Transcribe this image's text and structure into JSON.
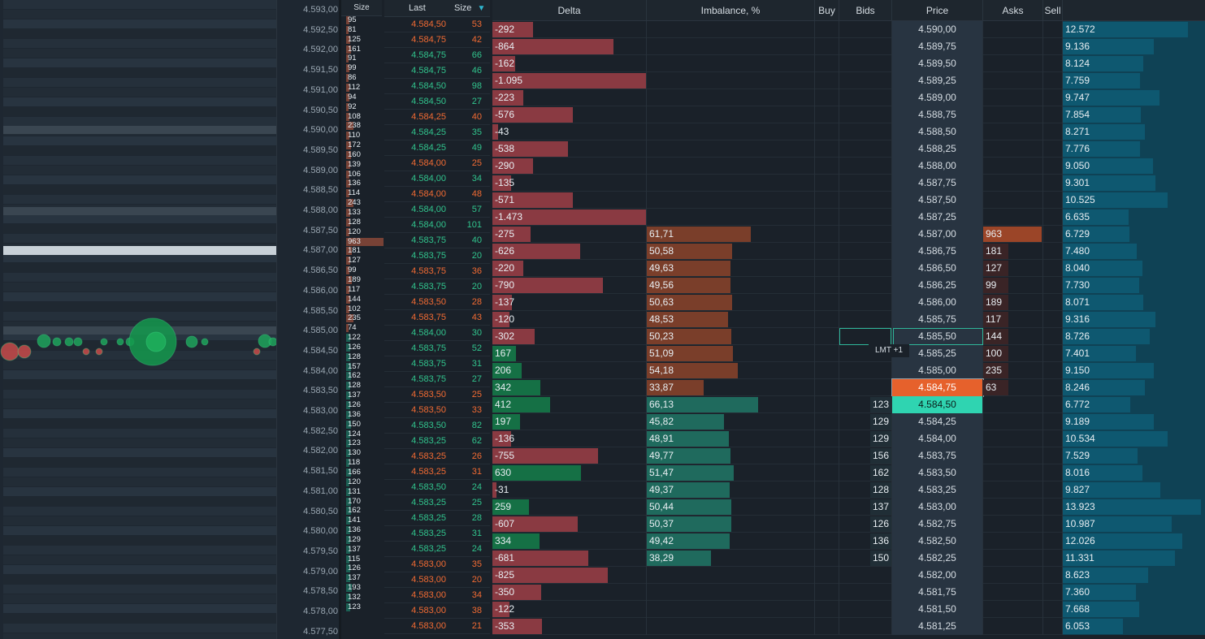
{
  "headers": {
    "vol_size": "Size",
    "last": "Last",
    "size": "Size",
    "delta": "Delta",
    "imbalance": "Imbalance, %",
    "buy": "Buy",
    "bids": "Bids",
    "price": "Price",
    "asks": "Asks",
    "sell": "Sell"
  },
  "colors": {
    "buy": "#31c48d",
    "sell": "#f26b33",
    "ask_highlight": "#e6612c",
    "bid_highlight": "#2fd4b1"
  },
  "y_axis_labels": [
    "4.593,00",
    "4.592,50",
    "4.592,00",
    "4.591,50",
    "4.591,00",
    "4.590,50",
    "4.590,00",
    "4.589,50",
    "4.589,00",
    "4.588,50",
    "4.588,00",
    "4.587,50",
    "4.587,00",
    "4.586,50",
    "4.586,00",
    "4.585,50",
    "4.585,00",
    "4.584,50",
    "4.584,00",
    "4.583,50",
    "4.583,00",
    "4.582,50",
    "4.582,00",
    "4.581,50",
    "4.581,00",
    "4.580,50",
    "4.580,00",
    "4.579,50",
    "4.579,00",
    "4.578,50",
    "4.578,00",
    "4.577,50"
  ],
  "volume_profile": [
    {
      "v": "95",
      "side": "r",
      "w": 4
    },
    {
      "v": "81",
      "side": "r",
      "w": 3
    },
    {
      "v": "125",
      "side": "r",
      "w": 5
    },
    {
      "v": "161",
      "side": "r",
      "w": 6
    },
    {
      "v": "91",
      "side": "r",
      "w": 3
    },
    {
      "v": "99",
      "side": "r",
      "w": 4
    },
    {
      "v": "86",
      "side": "r",
      "w": 3
    },
    {
      "v": "112",
      "side": "r",
      "w": 4
    },
    {
      "v": "94",
      "side": "r",
      "w": 4
    },
    {
      "v": "92",
      "side": "r",
      "w": 3
    },
    {
      "v": "108",
      "side": "r",
      "w": 4
    },
    {
      "v": "238",
      "side": "r",
      "w": 9
    },
    {
      "v": "110",
      "side": "r",
      "w": 4
    },
    {
      "v": "172",
      "side": "r",
      "w": 6
    },
    {
      "v": "160",
      "side": "r",
      "w": 6
    },
    {
      "v": "139",
      "side": "r",
      "w": 5
    },
    {
      "v": "106",
      "side": "r",
      "w": 4
    },
    {
      "v": "136",
      "side": "r",
      "w": 5
    },
    {
      "v": "114",
      "side": "r",
      "w": 4
    },
    {
      "v": "243",
      "side": "r",
      "w": 9
    },
    {
      "v": "133",
      "side": "r",
      "w": 5
    },
    {
      "v": "128",
      "side": "r",
      "w": 5
    },
    {
      "v": "120",
      "side": "r",
      "w": 4
    },
    {
      "v": "963",
      "side": "r",
      "w": 46
    },
    {
      "v": "181",
      "side": "r",
      "w": 7
    },
    {
      "v": "127",
      "side": "r",
      "w": 5
    },
    {
      "v": "99",
      "side": "r",
      "w": 4
    },
    {
      "v": "189",
      "side": "r",
      "w": 7
    },
    {
      "v": "117",
      "side": "r",
      "w": 4
    },
    {
      "v": "144",
      "side": "r",
      "w": 5
    },
    {
      "v": "102",
      "side": "r",
      "w": 4
    },
    {
      "v": "235",
      "side": "r",
      "w": 9
    },
    {
      "v": "74",
      "side": "r",
      "w": 3
    },
    {
      "v": "122",
      "side": "g",
      "w": 5
    },
    {
      "v": "126",
      "side": "g",
      "w": 5
    },
    {
      "v": "128",
      "side": "g",
      "w": 5
    },
    {
      "v": "157",
      "side": "g",
      "w": 6
    },
    {
      "v": "162",
      "side": "g",
      "w": 6
    },
    {
      "v": "128",
      "side": "g",
      "w": 5
    },
    {
      "v": "137",
      "side": "g",
      "w": 5
    },
    {
      "v": "126",
      "side": "g",
      "w": 5
    },
    {
      "v": "136",
      "side": "g",
      "w": 5
    },
    {
      "v": "150",
      "side": "g",
      "w": 6
    },
    {
      "v": "124",
      "side": "g",
      "w": 5
    },
    {
      "v": "123",
      "side": "g",
      "w": 5
    },
    {
      "v": "130",
      "side": "g",
      "w": 5
    },
    {
      "v": "118",
      "side": "g",
      "w": 4
    },
    {
      "v": "166",
      "side": "g",
      "w": 6
    },
    {
      "v": "120",
      "side": "g",
      "w": 4
    },
    {
      "v": "131",
      "side": "g",
      "w": 5
    },
    {
      "v": "170",
      "side": "g",
      "w": 6
    },
    {
      "v": "162",
      "side": "g",
      "w": 6
    },
    {
      "v": "141",
      "side": "g",
      "w": 5
    },
    {
      "v": "136",
      "side": "g",
      "w": 5
    },
    {
      "v": "129",
      "side": "g",
      "w": 5
    },
    {
      "v": "137",
      "side": "g",
      "w": 5
    },
    {
      "v": "115",
      "side": "g",
      "w": 4
    },
    {
      "v": "126",
      "side": "g",
      "w": 5
    },
    {
      "v": "137",
      "side": "g",
      "w": 5
    },
    {
      "v": "193",
      "side": "g",
      "w": 7
    },
    {
      "v": "132",
      "side": "g",
      "w": 5
    },
    {
      "v": "123",
      "side": "g",
      "w": 5
    }
  ],
  "time_and_sales": [
    {
      "price": "4.584,50",
      "size": "53",
      "side": "sell"
    },
    {
      "price": "4.584,75",
      "size": "42",
      "side": "sell"
    },
    {
      "price": "4.584,75",
      "size": "66",
      "side": "buy"
    },
    {
      "price": "4.584,75",
      "size": "46",
      "side": "buy"
    },
    {
      "price": "4.584,50",
      "size": "98",
      "side": "buy"
    },
    {
      "price": "4.584,50",
      "size": "27",
      "side": "buy"
    },
    {
      "price": "4.584,25",
      "size": "40",
      "side": "sell"
    },
    {
      "price": "4.584,25",
      "size": "35",
      "side": "buy"
    },
    {
      "price": "4.584,25",
      "size": "49",
      "side": "buy"
    },
    {
      "price": "4.584,00",
      "size": "25",
      "side": "sell"
    },
    {
      "price": "4.584,00",
      "size": "34",
      "side": "buy"
    },
    {
      "price": "4.584,00",
      "size": "48",
      "side": "sell"
    },
    {
      "price": "4.584,00",
      "size": "57",
      "side": "buy"
    },
    {
      "price": "4.584,00",
      "size": "101",
      "side": "buy"
    },
    {
      "price": "4.583,75",
      "size": "40",
      "side": "buy"
    },
    {
      "price": "4.583,75",
      "size": "20",
      "side": "buy"
    },
    {
      "price": "4.583,75",
      "size": "36",
      "side": "sell"
    },
    {
      "price": "4.583,75",
      "size": "20",
      "side": "buy"
    },
    {
      "price": "4.583,50",
      "size": "28",
      "side": "sell"
    },
    {
      "price": "4.583,75",
      "size": "43",
      "side": "sell"
    },
    {
      "price": "4.584,00",
      "size": "30",
      "side": "buy"
    },
    {
      "price": "4.583,75",
      "size": "52",
      "side": "buy"
    },
    {
      "price": "4.583,75",
      "size": "31",
      "side": "buy"
    },
    {
      "price": "4.583,75",
      "size": "27",
      "side": "buy"
    },
    {
      "price": "4.583,50",
      "size": "25",
      "side": "sell"
    },
    {
      "price": "4.583,50",
      "size": "33",
      "side": "sell"
    },
    {
      "price": "4.583,50",
      "size": "82",
      "side": "buy"
    },
    {
      "price": "4.583,25",
      "size": "62",
      "side": "buy"
    },
    {
      "price": "4.583,25",
      "size": "26",
      "side": "sell"
    },
    {
      "price": "4.583,25",
      "size": "31",
      "side": "sell"
    },
    {
      "price": "4.583,50",
      "size": "24",
      "side": "buy"
    },
    {
      "price": "4.583,25",
      "size": "25",
      "side": "buy"
    },
    {
      "price": "4.583,25",
      "size": "28",
      "side": "buy"
    },
    {
      "price": "4.583,25",
      "size": "31",
      "side": "buy"
    },
    {
      "price": "4.583,25",
      "size": "24",
      "side": "buy"
    },
    {
      "price": "4.583,00",
      "size": "35",
      "side": "sell"
    },
    {
      "price": "4.583,00",
      "size": "20",
      "side": "sell"
    },
    {
      "price": "4.583,00",
      "size": "34",
      "side": "sell"
    },
    {
      "price": "4.583,00",
      "size": "38",
      "side": "sell"
    },
    {
      "price": "4.583,00",
      "size": "21",
      "side": "sell"
    }
  ],
  "ladder": [
    {
      "delta": "-292",
      "d": -292,
      "imb": "",
      "ib": 0,
      "bids": "",
      "price": "4.590,00",
      "asks": "",
      "vol": "12.572"
    },
    {
      "delta": "-864",
      "d": -864,
      "imb": "",
      "ib": 0,
      "bids": "",
      "price": "4.589,75",
      "asks": "",
      "vol": "9.136"
    },
    {
      "delta": "-162",
      "d": -162,
      "imb": "",
      "ib": 0,
      "bids": "",
      "price": "4.589,50",
      "asks": "",
      "vol": "8.124"
    },
    {
      "delta": "-1.095",
      "d": -1095,
      "imb": "",
      "ib": 0,
      "bids": "",
      "price": "4.589,25",
      "asks": "",
      "vol": "7.759"
    },
    {
      "delta": "-223",
      "d": -223,
      "imb": "",
      "ib": 0,
      "bids": "",
      "price": "4.589,00",
      "asks": "",
      "vol": "9.747"
    },
    {
      "delta": "-576",
      "d": -576,
      "imb": "",
      "ib": 0,
      "bids": "",
      "price": "4.588,75",
      "asks": "",
      "vol": "7.854"
    },
    {
      "delta": "-43",
      "d": -43,
      "imb": "",
      "ib": 0,
      "bids": "",
      "price": "4.588,50",
      "asks": "",
      "vol": "8.271"
    },
    {
      "delta": "-538",
      "d": -538,
      "imb": "",
      "ib": 0,
      "bids": "",
      "price": "4.588,25",
      "asks": "",
      "vol": "7.776"
    },
    {
      "delta": "-290",
      "d": -290,
      "imb": "",
      "ib": 0,
      "bids": "",
      "price": "4.588,00",
      "asks": "",
      "vol": "9.050"
    },
    {
      "delta": "-135",
      "d": -135,
      "imb": "",
      "ib": 0,
      "bids": "",
      "price": "4.587,75",
      "asks": "",
      "vol": "9.301"
    },
    {
      "delta": "-571",
      "d": -571,
      "imb": "",
      "ib": 0,
      "bids": "",
      "price": "4.587,50",
      "asks": "",
      "vol": "10.525"
    },
    {
      "delta": "-1.473",
      "d": -1473,
      "imb": "",
      "ib": 0,
      "bids": "",
      "price": "4.587,25",
      "asks": "",
      "vol": "6.635"
    },
    {
      "delta": "-275",
      "d": -275,
      "imb": "61,71",
      "ib": 61.71,
      "ic": "r",
      "bids": "",
      "price": "4.587,00",
      "asks": "963",
      "vol": "6.729"
    },
    {
      "delta": "-626",
      "d": -626,
      "imb": "50,58",
      "ib": 50.58,
      "ic": "r",
      "bids": "",
      "price": "4.586,75",
      "asks": "181",
      "vol": "7.480"
    },
    {
      "delta": "-220",
      "d": -220,
      "imb": "49,63",
      "ib": 49.63,
      "ic": "r",
      "bids": "",
      "price": "4.586,50",
      "asks": "127",
      "vol": "8.040"
    },
    {
      "delta": "-790",
      "d": -790,
      "imb": "49,56",
      "ib": 49.56,
      "ic": "r",
      "bids": "",
      "price": "4.586,25",
      "asks": "99",
      "vol": "7.730"
    },
    {
      "delta": "-137",
      "d": -137,
      "imb": "50,63",
      "ib": 50.63,
      "ic": "r",
      "bids": "",
      "price": "4.586,00",
      "asks": "189",
      "vol": "8.071"
    },
    {
      "delta": "-120",
      "d": -120,
      "imb": "48,53",
      "ib": 48.53,
      "ic": "r",
      "bids": "",
      "price": "4.585,75",
      "asks": "117",
      "vol": "9.316"
    },
    {
      "delta": "-302",
      "d": -302,
      "imb": "50,23",
      "ib": 50.23,
      "ic": "r",
      "bids": "",
      "price": "4.585,50",
      "asks": "144",
      "vol": "8.726"
    },
    {
      "delta": "167",
      "d": 167,
      "imb": "51,09",
      "ib": 51.09,
      "ic": "r",
      "bids": "",
      "price": "4.585,25",
      "asks": "100",
      "vol": "7.401"
    },
    {
      "delta": "206",
      "d": 206,
      "imb": "54,18",
      "ib": 54.18,
      "ic": "r",
      "bids": "",
      "price": "4.585,00",
      "asks": "235",
      "vol": "9.150"
    },
    {
      "delta": "342",
      "d": 342,
      "imb": "33,87",
      "ib": 33.87,
      "ic": "r",
      "bids": "",
      "price": "4.584,75",
      "asks": "63",
      "vol": "8.246",
      "hi": "ask"
    },
    {
      "delta": "412",
      "d": 412,
      "imb": "66,13",
      "ib": 66.13,
      "ic": "g",
      "bids": "123",
      "price": "4.584,50",
      "asks": "",
      "vol": "6.772",
      "hi": "bid"
    },
    {
      "delta": "197",
      "d": 197,
      "imb": "45,82",
      "ib": 45.82,
      "ic": "g",
      "bids": "129",
      "price": "4.584,25",
      "asks": "",
      "vol": "9.189"
    },
    {
      "delta": "-136",
      "d": -136,
      "imb": "48,91",
      "ib": 48.91,
      "ic": "g",
      "bids": "129",
      "price": "4.584,00",
      "asks": "",
      "vol": "10.534"
    },
    {
      "delta": "-755",
      "d": -755,
      "imb": "49,77",
      "ib": 49.77,
      "ic": "g",
      "bids": "156",
      "price": "4.583,75",
      "asks": "",
      "vol": "7.529"
    },
    {
      "delta": "630",
      "d": 630,
      "imb": "51,47",
      "ib": 51.47,
      "ic": "g",
      "bids": "162",
      "price": "4.583,50",
      "asks": "",
      "vol": "8.016"
    },
    {
      "delta": "-31",
      "d": -31,
      "imb": "49,37",
      "ib": 49.37,
      "ic": "g",
      "bids": "128",
      "price": "4.583,25",
      "asks": "",
      "vol": "9.827"
    },
    {
      "delta": "259",
      "d": 259,
      "imb": "50,44",
      "ib": 50.44,
      "ic": "g",
      "bids": "137",
      "price": "4.583,00",
      "asks": "",
      "vol": "13.923"
    },
    {
      "delta": "-607",
      "d": -607,
      "imb": "50,37",
      "ib": 50.37,
      "ic": "g",
      "bids": "126",
      "price": "4.582,75",
      "asks": "",
      "vol": "10.987"
    },
    {
      "delta": "334",
      "d": 334,
      "imb": "49,42",
      "ib": 49.42,
      "ic": "g",
      "bids": "136",
      "price": "4.582,50",
      "asks": "",
      "vol": "12.026"
    },
    {
      "delta": "-681",
      "d": -681,
      "imb": "38,29",
      "ib": 38.29,
      "ic": "g",
      "bids": "150",
      "price": "4.582,25",
      "asks": "",
      "vol": "11.331"
    },
    {
      "delta": "-825",
      "d": -825,
      "imb": "",
      "ib": 0,
      "bids": "",
      "price": "4.582,00",
      "asks": "",
      "vol": "8.623"
    },
    {
      "delta": "-350",
      "d": -350,
      "imb": "",
      "ib": 0,
      "bids": "",
      "price": "4.581,75",
      "asks": "",
      "vol": "7.360"
    },
    {
      "delta": "-122",
      "d": -122,
      "imb": "",
      "ib": 0,
      "bids": "",
      "price": "4.581,50",
      "asks": "",
      "vol": "7.668"
    },
    {
      "delta": "-353",
      "d": -353,
      "imb": "",
      "ib": 0,
      "bids": "",
      "price": "4.581,25",
      "asks": "",
      "vol": "6.053"
    }
  ],
  "order_tag": "LMT +1"
}
